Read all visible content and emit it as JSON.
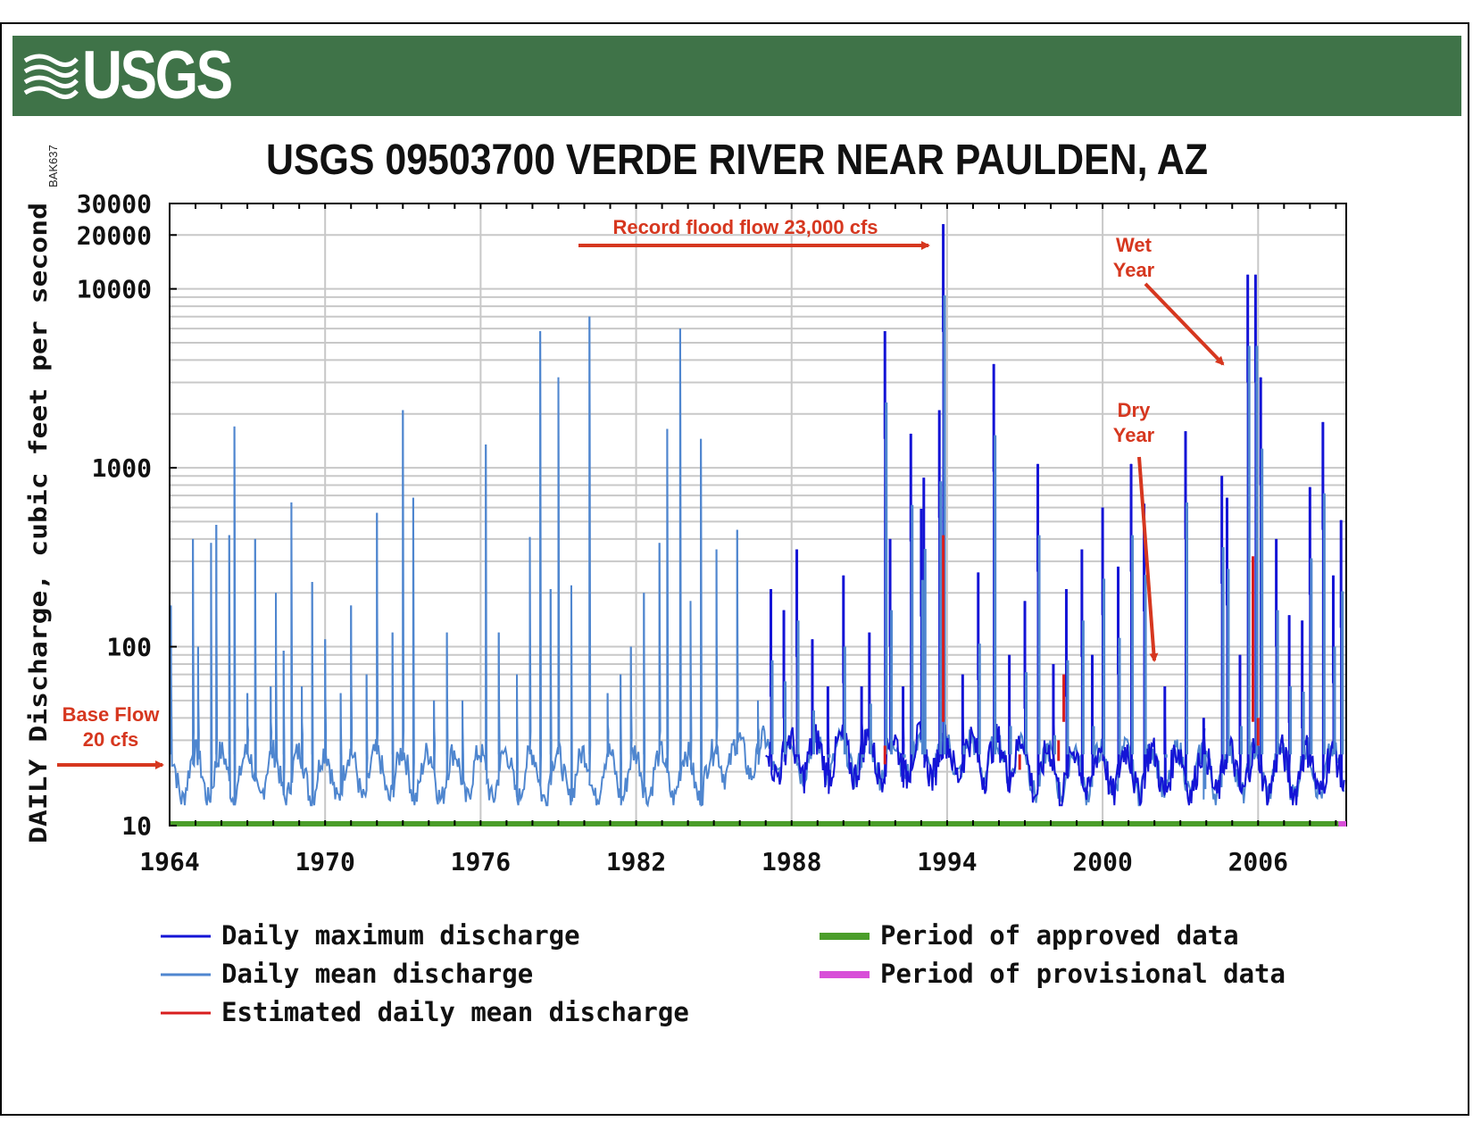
{
  "header": {
    "logo_text": "USGS",
    "side_code": "BAK637"
  },
  "colors": {
    "banner": "#3f7348",
    "max_series": "#1414d6",
    "mean_series": "#4f86cf",
    "estimated_series": "#d81e1e",
    "approved_bar": "#4b9e2a",
    "provisional_bar": "#d84fd8",
    "annotation": "#d6371f"
  },
  "chart_data": {
    "type": "line",
    "title": "USGS 09503700 VERDE RIVER NEAR PAULDEN, AZ",
    "xlabel": "",
    "ylabel": "DAILY Discharge, cubic feet per second",
    "y_scale": "log",
    "ylim": [
      10,
      30000
    ],
    "xlim": [
      1964,
      2009.4
    ],
    "x_ticks": [
      "1964",
      "1970",
      "1976",
      "1982",
      "1988",
      "1994",
      "2000",
      "2006"
    ],
    "y_ticks": [
      "30000",
      "20000",
      "10000",
      "1000",
      "100",
      "10"
    ],
    "grid": true,
    "legend_position": "bottom",
    "legend": [
      "Daily maximum discharge",
      "Daily mean discharge",
      "Estimated daily mean discharge",
      "Period of approved data",
      "Period of provisional data"
    ],
    "peaks_mean": [
      [
        1964.05,
        170
      ],
      [
        1964.9,
        400
      ],
      [
        1965.1,
        100
      ],
      [
        1965.6,
        380
      ],
      [
        1965.8,
        480
      ],
      [
        1966.3,
        420
      ],
      [
        1966.5,
        1700
      ],
      [
        1967.0,
        55
      ],
      [
        1967.3,
        400
      ],
      [
        1967.9,
        60
      ],
      [
        1968.1,
        200
      ],
      [
        1968.4,
        95
      ],
      [
        1968.7,
        640
      ],
      [
        1969.1,
        60
      ],
      [
        1969.5,
        230
      ],
      [
        1970.0,
        110
      ],
      [
        1970.6,
        55
      ],
      [
        1971.0,
        170
      ],
      [
        1971.6,
        70
      ],
      [
        1972.0,
        560
      ],
      [
        1972.6,
        120
      ],
      [
        1973.0,
        2100
      ],
      [
        1973.4,
        680
      ],
      [
        1974.2,
        50
      ],
      [
        1974.7,
        120
      ],
      [
        1975.3,
        50
      ],
      [
        1976.2,
        1350
      ],
      [
        1976.7,
        120
      ],
      [
        1977.4,
        70
      ],
      [
        1977.9,
        410
      ],
      [
        1978.3,
        5800
      ],
      [
        1978.7,
        210
      ],
      [
        1979.0,
        3200
      ],
      [
        1979.5,
        220
      ],
      [
        1980.2,
        7000
      ],
      [
        1980.9,
        55
      ],
      [
        1981.4,
        70
      ],
      [
        1981.8,
        100
      ],
      [
        1982.3,
        200
      ],
      [
        1982.9,
        380
      ],
      [
        1983.2,
        1650
      ],
      [
        1983.7,
        6000
      ],
      [
        1984.1,
        180
      ],
      [
        1984.5,
        1450
      ],
      [
        1985.1,
        350
      ],
      [
        1985.9,
        450
      ],
      [
        1986.7,
        50
      ]
    ],
    "peaks_max": [
      [
        1987.2,
        210
      ],
      [
        1987.7,
        160
      ],
      [
        1988.2,
        350
      ],
      [
        1988.8,
        110
      ],
      [
        1989.4,
        60
      ],
      [
        1990.0,
        250
      ],
      [
        1990.7,
        60
      ],
      [
        1991.0,
        120
      ],
      [
        1991.6,
        5800
      ],
      [
        1991.8,
        400
      ],
      [
        1992.3,
        60
      ],
      [
        1992.6,
        1550
      ],
      [
        1993.0,
        590
      ],
      [
        1993.1,
        880
      ],
      [
        1993.7,
        2100
      ],
      [
        1993.85,
        23000
      ],
      [
        1994.6,
        70
      ],
      [
        1995.2,
        260
      ],
      [
        1995.8,
        3800
      ],
      [
        1996.4,
        90
      ],
      [
        1997.0,
        180
      ],
      [
        1997.5,
        1050
      ],
      [
        1998.1,
        80
      ],
      [
        1998.6,
        210
      ],
      [
        1999.2,
        350
      ],
      [
        1999.6,
        90
      ],
      [
        2000.0,
        600
      ],
      [
        2000.6,
        280
      ],
      [
        2001.1,
        1050
      ],
      [
        2001.6,
        630
      ],
      [
        2002.4,
        60
      ],
      [
        2003.2,
        1600
      ],
      [
        2003.9,
        40
      ],
      [
        2004.6,
        900
      ],
      [
        2004.8,
        680
      ],
      [
        2005.3,
        90
      ],
      [
        2005.6,
        12000
      ],
      [
        2005.9,
        12000
      ],
      [
        2006.1,
        3200
      ],
      [
        2006.7,
        400
      ],
      [
        2007.2,
        150
      ],
      [
        2007.7,
        140
      ],
      [
        2008.0,
        780
      ],
      [
        2008.5,
        1800
      ],
      [
        2008.9,
        250
      ],
      [
        2009.2,
        510
      ]
    ],
    "peaks_estimated": [
      [
        1991.6,
        28
      ],
      [
        1993.85,
        420
      ],
      [
        1998.5,
        70
      ],
      [
        1998.3,
        30
      ],
      [
        1996.8,
        25
      ],
      [
        2005.8,
        320
      ],
      [
        2006.0,
        40
      ]
    ],
    "annotations": [
      {
        "text": "Record flood flow 23,000 cfs",
        "x": 1993.6,
        "y": 23000
      },
      {
        "text": "Wet",
        "x": 2005.7,
        "y": 5000
      },
      {
        "text": "Year",
        "x": 2005.7,
        "y": 5000
      },
      {
        "text": "Dry",
        "x": 2001.75,
        "y": 90
      },
      {
        "text": "Year",
        "x": 2001.75,
        "y": 90
      },
      {
        "text": "Base Flow",
        "x": 1963.9,
        "y": 20
      },
      {
        "text": "20 cfs",
        "x": 1963.9,
        "y": 20
      }
    ]
  }
}
